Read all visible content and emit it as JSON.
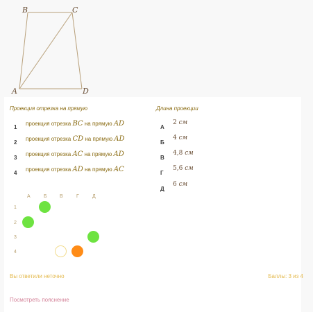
{
  "figure": {
    "vertices": {
      "a": "A",
      "b": "B",
      "c": "C",
      "d": "D"
    }
  },
  "task": {
    "left_header": "Проекция отрезка на прямую",
    "right_header": "Длина проекции",
    "items": [
      {
        "num": "1",
        "prefix": "проекция отрезка ",
        "seg": "BC",
        "middle": " на прямую ",
        "line": "AD"
      },
      {
        "num": "2",
        "prefix": "проекция отрезка ",
        "seg": "CD",
        "middle": " на прямую ",
        "line": "AD"
      },
      {
        "num": "3",
        "prefix": "проекция отрезка ",
        "seg": "AC",
        "middle": " на прямую ",
        "line": "AD"
      },
      {
        "num": "4",
        "prefix": "проекция отрезка ",
        "seg": "AD",
        "middle": " на прямую ",
        "line": "AC"
      }
    ],
    "options": [
      {
        "letter": "А",
        "value": "2",
        "unit": "см"
      },
      {
        "letter": "Б",
        "value": "4",
        "unit": "см"
      },
      {
        "letter": "В",
        "value": "4,8",
        "unit": "см"
      },
      {
        "letter": "Г",
        "value": "5,6",
        "unit": "см"
      },
      {
        "letter": "Д",
        "value": "6",
        "unit": "см"
      }
    ]
  },
  "answer_grid": {
    "columns": [
      "А",
      "Б",
      "В",
      "Г",
      "Д"
    ],
    "rows": [
      "1",
      "2",
      "3",
      "4"
    ],
    "marks": [
      {
        "row": 0,
        "col": 1,
        "state": "correct"
      },
      {
        "row": 1,
        "col": 0,
        "state": "correct"
      },
      {
        "row": 2,
        "col": 4,
        "state": "correct"
      },
      {
        "row": 3,
        "col": 2,
        "state": "missed"
      },
      {
        "row": 3,
        "col": 3,
        "state": "wrong"
      }
    ]
  },
  "result": {
    "message": "Вы ответили неточно",
    "score": "Баллы: 3 из 4"
  },
  "explain_link": "Посмотреть пояснение",
  "colors": {
    "correct": "#6ee341",
    "wrong": "#ff8c17",
    "missed_border": "#f2dc8f"
  }
}
